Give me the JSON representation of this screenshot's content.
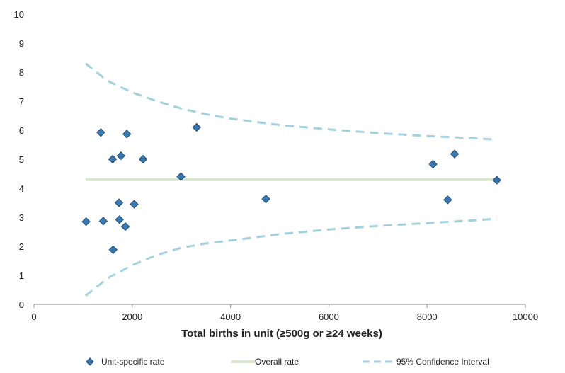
{
  "chart_data": {
    "type": "scatter",
    "xlabel": "Total births in unit (≥500g or ≥24 weeks)",
    "ylabel": "",
    "xlim": [
      0,
      10000
    ],
    "ylim": [
      0,
      10
    ],
    "x_ticks": [
      "0",
      "2000",
      "4000",
      "6000",
      "8000",
      "10000"
    ],
    "y_ticks": [
      "0",
      "1",
      "2",
      "3",
      "4",
      "5",
      "6",
      "7",
      "8",
      "9",
      "10"
    ],
    "grid": false,
    "legend_position": "bottom",
    "series": [
      {
        "name": "Unit-specific rate",
        "kind": "scatter",
        "color": "#3a78b0",
        "points": [
          {
            "x": 1060,
            "y": 2.85
          },
          {
            "x": 1360,
            "y": 5.92
          },
          {
            "x": 1410,
            "y": 2.87
          },
          {
            "x": 1600,
            "y": 5.0
          },
          {
            "x": 1610,
            "y": 1.88
          },
          {
            "x": 1730,
            "y": 3.5
          },
          {
            "x": 1740,
            "y": 2.92
          },
          {
            "x": 1770,
            "y": 5.12
          },
          {
            "x": 1860,
            "y": 2.68
          },
          {
            "x": 1890,
            "y": 5.87
          },
          {
            "x": 2040,
            "y": 3.45
          },
          {
            "x": 2220,
            "y": 5.0
          },
          {
            "x": 2990,
            "y": 4.4
          },
          {
            "x": 3310,
            "y": 6.1
          },
          {
            "x": 4720,
            "y": 3.63
          },
          {
            "x": 8120,
            "y": 4.83
          },
          {
            "x": 8420,
            "y": 3.6
          },
          {
            "x": 8560,
            "y": 5.18
          },
          {
            "x": 9420,
            "y": 4.28
          }
        ]
      },
      {
        "name": "Overall rate",
        "kind": "line",
        "color": "#dbe6cf",
        "x": [
          1050,
          9420
        ],
        "y": [
          4.3,
          4.3
        ]
      },
      {
        "name": "95% Confidence Interval",
        "kind": "dashed",
        "color": "#a3d1df",
        "upper": {
          "x": [
            1050,
            1500,
            2000,
            2500,
            3000,
            3500,
            4000,
            5000,
            6000,
            7000,
            8000,
            9000,
            9420
          ],
          "y": [
            8.3,
            7.7,
            7.3,
            7.0,
            6.75,
            6.55,
            6.4,
            6.18,
            6.03,
            5.9,
            5.8,
            5.72,
            5.67
          ]
        },
        "lower": {
          "x": [
            1050,
            1500,
            2000,
            2500,
            3000,
            3500,
            4000,
            5000,
            6000,
            7000,
            8000,
            9000,
            9420
          ],
          "y": [
            0.3,
            0.9,
            1.35,
            1.7,
            1.95,
            2.1,
            2.2,
            2.42,
            2.58,
            2.7,
            2.8,
            2.9,
            2.95
          ]
        }
      }
    ]
  }
}
